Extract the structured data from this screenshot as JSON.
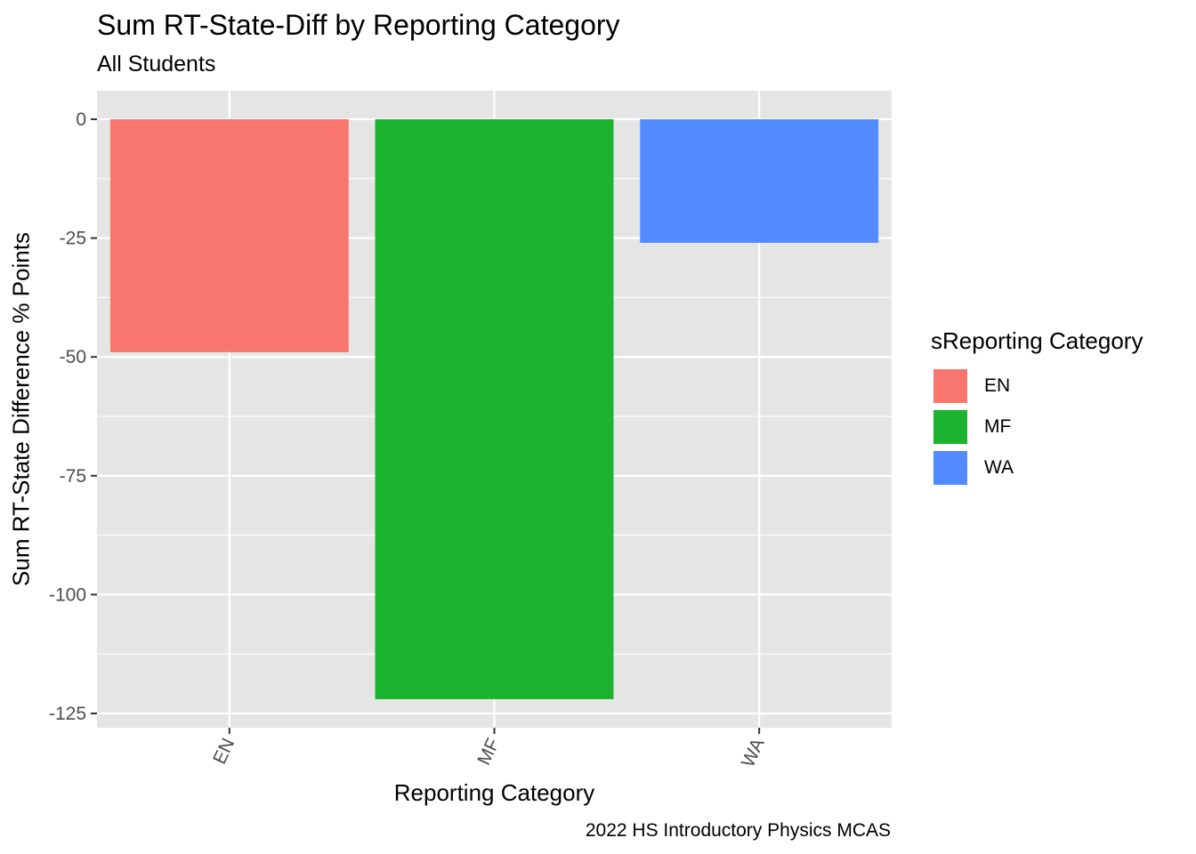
{
  "chart_data": {
    "type": "bar",
    "title": "Sum RT-State-Diff by Reporting Category",
    "subtitle": "All Students",
    "caption": "2022 HS Introductory Physics MCAS",
    "xlabel": "Reporting Category",
    "ylabel": "Sum RT-State Difference % Points",
    "categories": [
      "EN",
      "MF",
      "WA"
    ],
    "values": [
      -49,
      -122,
      -26
    ],
    "colors": [
      "#F8766D",
      "#1BB32F",
      "#528AFF"
    ],
    "ylim": [
      -128,
      6
    ],
    "yticks": [
      0,
      -25,
      -50,
      -75,
      -100,
      -125
    ],
    "ytick_labels": [
      "0",
      "-25",
      "-50",
      "-75",
      "-100",
      "-125"
    ],
    "grid": true,
    "panel_background": "#E5E5E5",
    "legend": {
      "title": "sReporting Category",
      "position": "right",
      "items": [
        "EN",
        "MF",
        "WA"
      ]
    }
  }
}
